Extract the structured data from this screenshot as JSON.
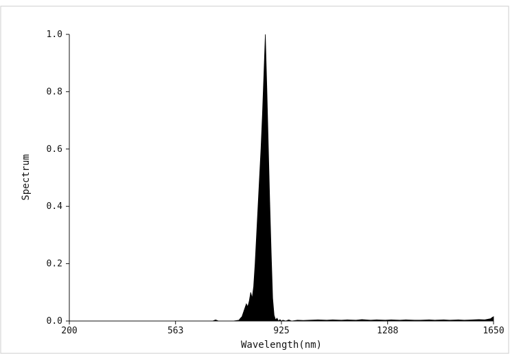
{
  "chart_data": {
    "type": "area",
    "xlabel": "Wavelength(nm)",
    "ylabel": "Spectrum",
    "xlim": [
      200,
      1650
    ],
    "ylim": [
      0,
      1.0
    ],
    "x_ticks": [
      200,
      563,
      925,
      1288,
      1650
    ],
    "x_tick_labels": [
      "200",
      "563",
      "925",
      "1288",
      "1650"
    ],
    "y_ticks": [
      0.0,
      0.2,
      0.4,
      0.6,
      0.8,
      1.0
    ],
    "y_tick_labels": [
      "0.0",
      "0.2",
      "0.4",
      "0.6",
      "0.8",
      "1.0"
    ],
    "grid": false,
    "fill_color": "#000000",
    "series": [
      {
        "x": [
          200,
          600,
          690,
          700,
          710,
          760,
          780,
          785,
          790,
          795,
          800,
          805,
          810,
          815,
          820,
          825,
          830,
          835,
          840,
          845,
          850,
          855,
          860,
          865,
          870,
          875,
          880,
          885,
          890,
          895,
          900,
          905,
          910,
          915,
          920,
          925,
          930,
          940,
          950,
          960,
          980,
          1000,
          1020,
          1050,
          1080,
          1100,
          1130,
          1150,
          1180,
          1200,
          1230,
          1250,
          1280,
          1300,
          1330,
          1350,
          1380,
          1400,
          1430,
          1450,
          1480,
          1500,
          1530,
          1550,
          1580,
          1600,
          1620,
          1640,
          1645,
          1650
        ],
        "y": [
          0.0,
          0.0,
          0.0,
          0.004,
          0.0,
          0.0,
          0.003,
          0.01,
          0.015,
          0.03,
          0.045,
          0.06,
          0.05,
          0.07,
          0.1,
          0.08,
          0.12,
          0.2,
          0.3,
          0.4,
          0.5,
          0.6,
          0.72,
          0.86,
          1.0,
          0.82,
          0.62,
          0.42,
          0.24,
          0.08,
          0.02,
          0.004,
          0.01,
          0.0,
          0.005,
          0.0,
          0.003,
          0.0,
          0.004,
          0.0,
          0.003,
          0.002,
          0.003,
          0.004,
          0.003,
          0.004,
          0.003,
          0.004,
          0.003,
          0.005,
          0.003,
          0.004,
          0.003,
          0.004,
          0.003,
          0.004,
          0.003,
          0.003,
          0.004,
          0.003,
          0.004,
          0.003,
          0.004,
          0.003,
          0.004,
          0.005,
          0.004,
          0.008,
          0.012,
          0.015
        ]
      }
    ]
  }
}
